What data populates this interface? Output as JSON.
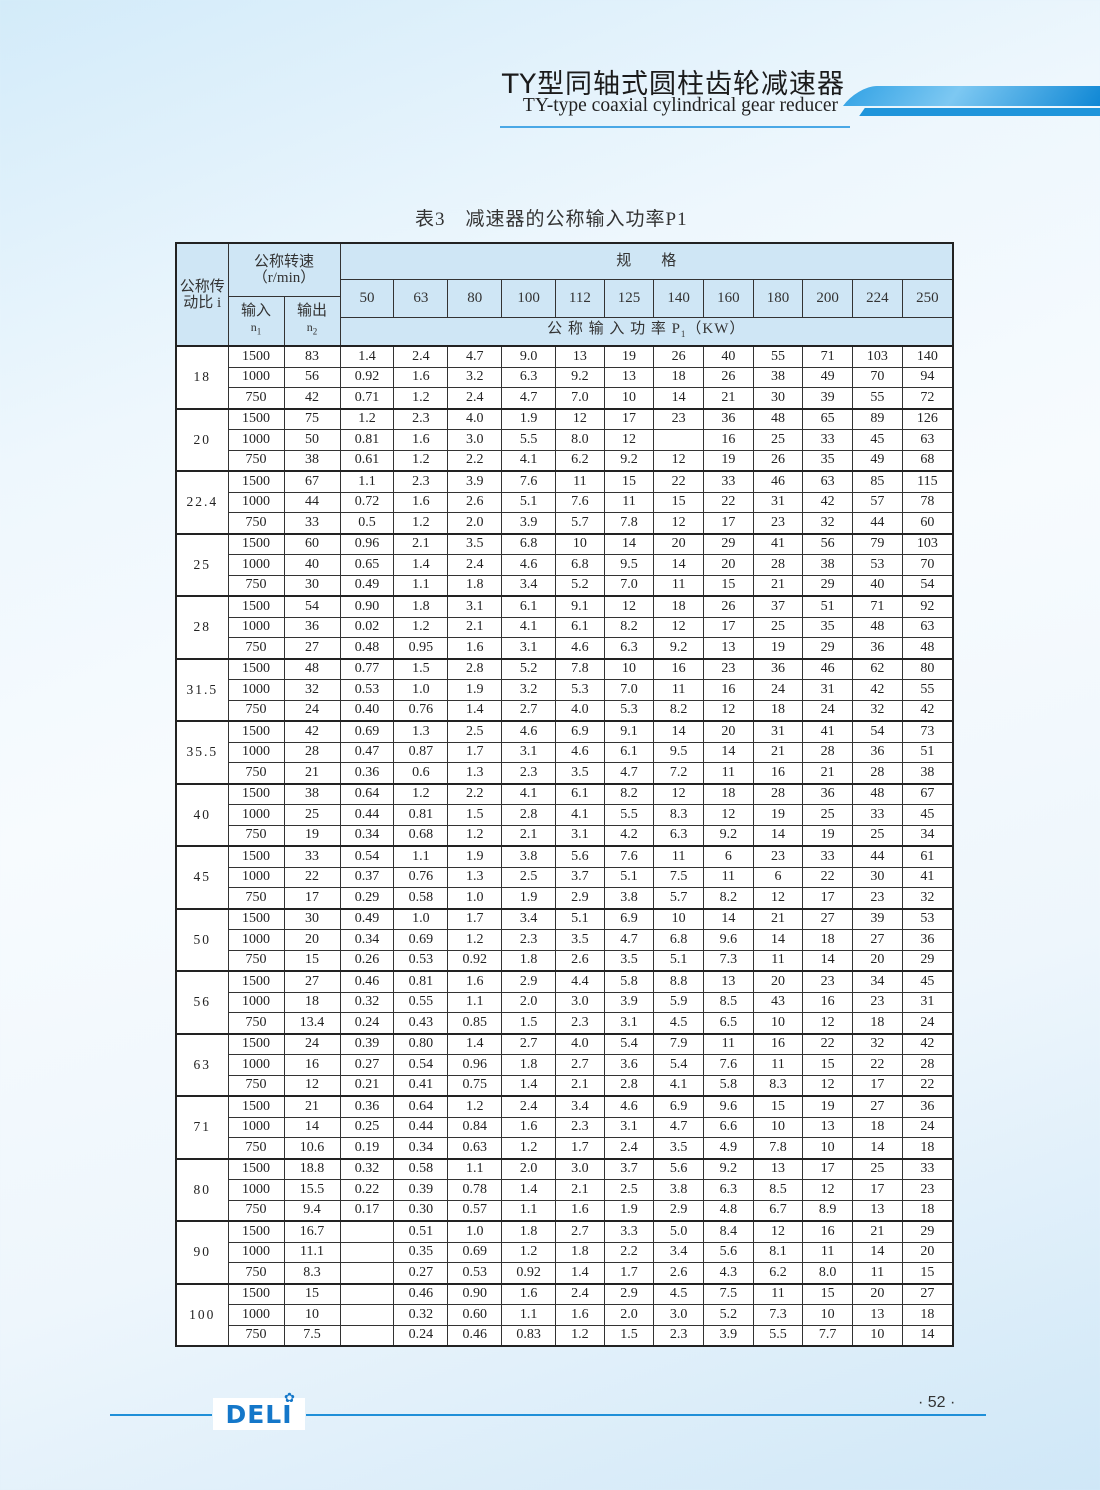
{
  "header": {
    "title_cn": "TY型同轴式圆柱齿轮减速器",
    "title_en": "TY-type coaxial cylindrical gear reducer"
  },
  "caption": {
    "label": "表3",
    "text": "减速器的公称输入功率P1"
  },
  "table": {
    "ratio_header": "公称传动比 i",
    "speed_header": "公称转速（r/min）",
    "input_header": "输入",
    "input_symbol": "n",
    "input_sub": "1",
    "output_header": "输出",
    "output_symbol": "n",
    "output_sub": "2",
    "spec_header": "规　　格",
    "sizes": [
      "50",
      "63",
      "80",
      "100",
      "112",
      "125",
      "140",
      "160",
      "180",
      "200",
      "224",
      "250"
    ],
    "power_header": "公 称 输 入 功 率 P",
    "power_sub": "1",
    "power_unit": "（KW）",
    "groups": [
      {
        "ratio": "18",
        "rows": [
          {
            "n1": "1500",
            "n2": "83",
            "v": [
              "1.4",
              "2.4",
              "4.7",
              "9.0",
              "13",
              "19",
              "26",
              "40",
              "55",
              "71",
              "103",
              "140"
            ]
          },
          {
            "n1": "1000",
            "n2": "56",
            "v": [
              "0.92",
              "1.6",
              "3.2",
              "6.3",
              "9.2",
              "13",
              "18",
              "26",
              "38",
              "49",
              "70",
              "94"
            ]
          },
          {
            "n1": "750",
            "n2": "42",
            "v": [
              "0.71",
              "1.2",
              "2.4",
              "4.7",
              "7.0",
              "10",
              "14",
              "21",
              "30",
              "39",
              "55",
              "72"
            ]
          }
        ]
      },
      {
        "ratio": "20",
        "rows": [
          {
            "n1": "1500",
            "n2": "75",
            "v": [
              "1.2",
              "2.3",
              "4.0",
              "1.9",
              "12",
              "17",
              "23",
              "36",
              "48",
              "65",
              "89",
              "126"
            ]
          },
          {
            "n1": "1000",
            "n2": "50",
            "v": [
              "0.81",
              "1.6",
              "3.0",
              "5.5",
              "8.0",
              "12",
              "",
              "16",
              "25",
              "33",
              "45",
              "63"
            ]
          },
          {
            "n1": "750",
            "n2": "38",
            "v": [
              "0.61",
              "1.2",
              "2.2",
              "4.1",
              "6.2",
              "9.2",
              "12",
              "19",
              "26",
              "35",
              "49",
              "68"
            ]
          }
        ]
      },
      {
        "ratio": "22.4",
        "rows": [
          {
            "n1": "1500",
            "n2": "67",
            "v": [
              "1.1",
              "2.3",
              "3.9",
              "7.6",
              "11",
              "15",
              "22",
              "33",
              "46",
              "63",
              "85",
              "115"
            ]
          },
          {
            "n1": "1000",
            "n2": "44",
            "v": [
              "0.72",
              "1.6",
              "2.6",
              "5.1",
              "7.6",
              "11",
              "15",
              "22",
              "31",
              "42",
              "57",
              "78"
            ]
          },
          {
            "n1": "750",
            "n2": "33",
            "v": [
              "0.5",
              "1.2",
              "2.0",
              "3.9",
              "5.7",
              "7.8",
              "12",
              "17",
              "23",
              "32",
              "44",
              "60"
            ]
          }
        ]
      },
      {
        "ratio": "25",
        "rows": [
          {
            "n1": "1500",
            "n2": "60",
            "v": [
              "0.96",
              "2.1",
              "3.5",
              "6.8",
              "10",
              "14",
              "20",
              "29",
              "41",
              "56",
              "79",
              "103"
            ]
          },
          {
            "n1": "1000",
            "n2": "40",
            "v": [
              "0.65",
              "1.4",
              "2.4",
              "4.6",
              "6.8",
              "9.5",
              "14",
              "20",
              "28",
              "38",
              "53",
              "70"
            ]
          },
          {
            "n1": "750",
            "n2": "30",
            "v": [
              "0.49",
              "1.1",
              "1.8",
              "3.4",
              "5.2",
              "7.0",
              "11",
              "15",
              "21",
              "29",
              "40",
              "54"
            ]
          }
        ]
      },
      {
        "ratio": "28",
        "rows": [
          {
            "n1": "1500",
            "n2": "54",
            "v": [
              "0.90",
              "1.8",
              "3.1",
              "6.1",
              "9.1",
              "12",
              "18",
              "26",
              "37",
              "51",
              "71",
              "92"
            ]
          },
          {
            "n1": "1000",
            "n2": "36",
            "v": [
              "0.02",
              "1.2",
              "2.1",
              "4.1",
              "6.1",
              "8.2",
              "12",
              "17",
              "25",
              "35",
              "48",
              "63"
            ]
          },
          {
            "n1": "750",
            "n2": "27",
            "v": [
              "0.48",
              "0.95",
              "1.6",
              "3.1",
              "4.6",
              "6.3",
              "9.2",
              "13",
              "19",
              "29",
              "36",
              "48"
            ]
          }
        ]
      },
      {
        "ratio": "31.5",
        "rows": [
          {
            "n1": "1500",
            "n2": "48",
            "v": [
              "0.77",
              "1.5",
              "2.8",
              "5.2",
              "7.8",
              "10",
              "16",
              "23",
              "36",
              "46",
              "62",
              "80"
            ]
          },
          {
            "n1": "1000",
            "n2": "32",
            "v": [
              "0.53",
              "1.0",
              "1.9",
              "3.2",
              "5.3",
              "7.0",
              "11",
              "16",
              "24",
              "31",
              "42",
              "55"
            ]
          },
          {
            "n1": "750",
            "n2": "24",
            "v": [
              "0.40",
              "0.76",
              "1.4",
              "2.7",
              "4.0",
              "5.3",
              "8.2",
              "12",
              "18",
              "24",
              "32",
              "42"
            ]
          }
        ]
      },
      {
        "ratio": "35.5",
        "rows": [
          {
            "n1": "1500",
            "n2": "42",
            "v": [
              "0.69",
              "1.3",
              "2.5",
              "4.6",
              "6.9",
              "9.1",
              "14",
              "20",
              "31",
              "41",
              "54",
              "73"
            ]
          },
          {
            "n1": "1000",
            "n2": "28",
            "v": [
              "0.47",
              "0.87",
              "1.7",
              "3.1",
              "4.6",
              "6.1",
              "9.5",
              "14",
              "21",
              "28",
              "36",
              "51"
            ]
          },
          {
            "n1": "750",
            "n2": "21",
            "v": [
              "0.36",
              "0.6",
              "1.3",
              "2.3",
              "3.5",
              "4.7",
              "7.2",
              "11",
              "16",
              "21",
              "28",
              "38"
            ]
          }
        ]
      },
      {
        "ratio": "40",
        "rows": [
          {
            "n1": "1500",
            "n2": "38",
            "v": [
              "0.64",
              "1.2",
              "2.2",
              "4.1",
              "6.1",
              "8.2",
              "12",
              "18",
              "28",
              "36",
              "48",
              "67"
            ]
          },
          {
            "n1": "1000",
            "n2": "25",
            "v": [
              "0.44",
              "0.81",
              "1.5",
              "2.8",
              "4.1",
              "5.5",
              "8.3",
              "12",
              "19",
              "25",
              "33",
              "45"
            ]
          },
          {
            "n1": "750",
            "n2": "19",
            "v": [
              "0.34",
              "0.68",
              "1.2",
              "2.1",
              "3.1",
              "4.2",
              "6.3",
              "9.2",
              "14",
              "19",
              "25",
              "34"
            ]
          }
        ]
      },
      {
        "ratio": "45",
        "rows": [
          {
            "n1": "1500",
            "n2": "33",
            "v": [
              "0.54",
              "1.1",
              "1.9",
              "3.8",
              "5.6",
              "7.6",
              "11",
              "6",
              "23",
              "33",
              "44",
              "61"
            ]
          },
          {
            "n1": "1000",
            "n2": "22",
            "v": [
              "0.37",
              "0.76",
              "1.3",
              "2.5",
              "3.7",
              "5.1",
              "7.5",
              "11",
              "6",
              "22",
              "30",
              "41"
            ]
          },
          {
            "n1": "750",
            "n2": "17",
            "v": [
              "0.29",
              "0.58",
              "1.0",
              "1.9",
              "2.9",
              "3.8",
              "5.7",
              "8.2",
              "12",
              "17",
              "23",
              "32"
            ]
          }
        ]
      },
      {
        "ratio": "50",
        "rows": [
          {
            "n1": "1500",
            "n2": "30",
            "v": [
              "0.49",
              "1.0",
              "1.7",
              "3.4",
              "5.1",
              "6.9",
              "10",
              "14",
              "21",
              "27",
              "39",
              "53"
            ]
          },
          {
            "n1": "1000",
            "n2": "20",
            "v": [
              "0.34",
              "0.69",
              "1.2",
              "2.3",
              "3.5",
              "4.7",
              "6.8",
              "9.6",
              "14",
              "18",
              "27",
              "36"
            ]
          },
          {
            "n1": "750",
            "n2": "15",
            "v": [
              "0.26",
              "0.53",
              "0.92",
              "1.8",
              "2.6",
              "3.5",
              "5.1",
              "7.3",
              "11",
              "14",
              "20",
              "29"
            ]
          }
        ]
      },
      {
        "ratio": "56",
        "rows": [
          {
            "n1": "1500",
            "n2": "27",
            "v": [
              "0.46",
              "0.81",
              "1.6",
              "2.9",
              "4.4",
              "5.8",
              "8.8",
              "13",
              "20",
              "23",
              "34",
              "45"
            ]
          },
          {
            "n1": "1000",
            "n2": "18",
            "v": [
              "0.32",
              "0.55",
              "1.1",
              "2.0",
              "3.0",
              "3.9",
              "5.9",
              "8.5",
              "43",
              "16",
              "23",
              "31"
            ]
          },
          {
            "n1": "750",
            "n2": "13.4",
            "v": [
              "0.24",
              "0.43",
              "0.85",
              "1.5",
              "2.3",
              "3.1",
              "4.5",
              "6.5",
              "10",
              "12",
              "18",
              "24"
            ]
          }
        ]
      },
      {
        "ratio": "63",
        "rows": [
          {
            "n1": "1500",
            "n2": "24",
            "v": [
              "0.39",
              "0.80",
              "1.4",
              "2.7",
              "4.0",
              "5.4",
              "7.9",
              "11",
              "16",
              "22",
              "32",
              "42"
            ]
          },
          {
            "n1": "1000",
            "n2": "16",
            "v": [
              "0.27",
              "0.54",
              "0.96",
              "1.8",
              "2.7",
              "3.6",
              "5.4",
              "7.6",
              "11",
              "15",
              "22",
              "28"
            ]
          },
          {
            "n1": "750",
            "n2": "12",
            "v": [
              "0.21",
              "0.41",
              "0.75",
              "1.4",
              "2.1",
              "2.8",
              "4.1",
              "5.8",
              "8.3",
              "12",
              "17",
              "22"
            ]
          }
        ]
      },
      {
        "ratio": "71",
        "rows": [
          {
            "n1": "1500",
            "n2": "21",
            "v": [
              "0.36",
              "0.64",
              "1.2",
              "2.4",
              "3.4",
              "4.6",
              "6.9",
              "9.6",
              "15",
              "19",
              "27",
              "36"
            ]
          },
          {
            "n1": "1000",
            "n2": "14",
            "v": [
              "0.25",
              "0.44",
              "0.84",
              "1.6",
              "2.3",
              "3.1",
              "4.7",
              "6.6",
              "10",
              "13",
              "18",
              "24"
            ]
          },
          {
            "n1": "750",
            "n2": "10.6",
            "v": [
              "0.19",
              "0.34",
              "0.63",
              "1.2",
              "1.7",
              "2.4",
              "3.5",
              "4.9",
              "7.8",
              "10",
              "14",
              "18"
            ]
          }
        ]
      },
      {
        "ratio": "80",
        "rows": [
          {
            "n1": "1500",
            "n2": "18.8",
            "v": [
              "0.32",
              "0.58",
              "1.1",
              "2.0",
              "3.0",
              "3.7",
              "5.6",
              "9.2",
              "13",
              "17",
              "25",
              "33"
            ]
          },
          {
            "n1": "1000",
            "n2": "15.5",
            "v": [
              "0.22",
              "0.39",
              "0.78",
              "1.4",
              "2.1",
              "2.5",
              "3.8",
              "6.3",
              "8.5",
              "12",
              "17",
              "23"
            ]
          },
          {
            "n1": "750",
            "n2": "9.4",
            "v": [
              "0.17",
              "0.30",
              "0.57",
              "1.1",
              "1.6",
              "1.9",
              "2.9",
              "4.8",
              "6.7",
              "8.9",
              "13",
              "18"
            ]
          }
        ]
      },
      {
        "ratio": "90",
        "rows": [
          {
            "n1": "1500",
            "n2": "16.7",
            "v": [
              "",
              "0.51",
              "1.0",
              "1.8",
              "2.7",
              "3.3",
              "5.0",
              "8.4",
              "12",
              "16",
              "21",
              "29"
            ]
          },
          {
            "n1": "1000",
            "n2": "11.1",
            "v": [
              "",
              "0.35",
              "0.69",
              "1.2",
              "1.8",
              "2.2",
              "3.4",
              "5.6",
              "8.1",
              "11",
              "14",
              "20"
            ]
          },
          {
            "n1": "750",
            "n2": "8.3",
            "v": [
              "",
              "0.27",
              "0.53",
              "0.92",
              "1.4",
              "1.7",
              "2.6",
              "4.3",
              "6.2",
              "8.0",
              "11",
              "15"
            ]
          }
        ]
      },
      {
        "ratio": "100",
        "rows": [
          {
            "n1": "1500",
            "n2": "15",
            "v": [
              "",
              "0.46",
              "0.90",
              "1.6",
              "2.4",
              "2.9",
              "4.5",
              "7.5",
              "11",
              "15",
              "20",
              "27"
            ]
          },
          {
            "n1": "1000",
            "n2": "10",
            "v": [
              "",
              "0.32",
              "0.60",
              "1.1",
              "1.6",
              "2.0",
              "3.0",
              "5.2",
              "7.3",
              "10",
              "13",
              "18"
            ]
          },
          {
            "n1": "750",
            "n2": "7.5",
            "v": [
              "",
              "0.24",
              "0.46",
              "0.83",
              "1.2",
              "1.5",
              "2.3",
              "3.9",
              "5.5",
              "7.7",
              "10",
              "14"
            ]
          }
        ]
      }
    ]
  },
  "footer": {
    "logo": "DELI",
    "page": "· 52 ·"
  },
  "colors": {
    "accent": "#1f8fd8",
    "header_fill": "#cfe6f5",
    "logo": "#1477c9"
  }
}
